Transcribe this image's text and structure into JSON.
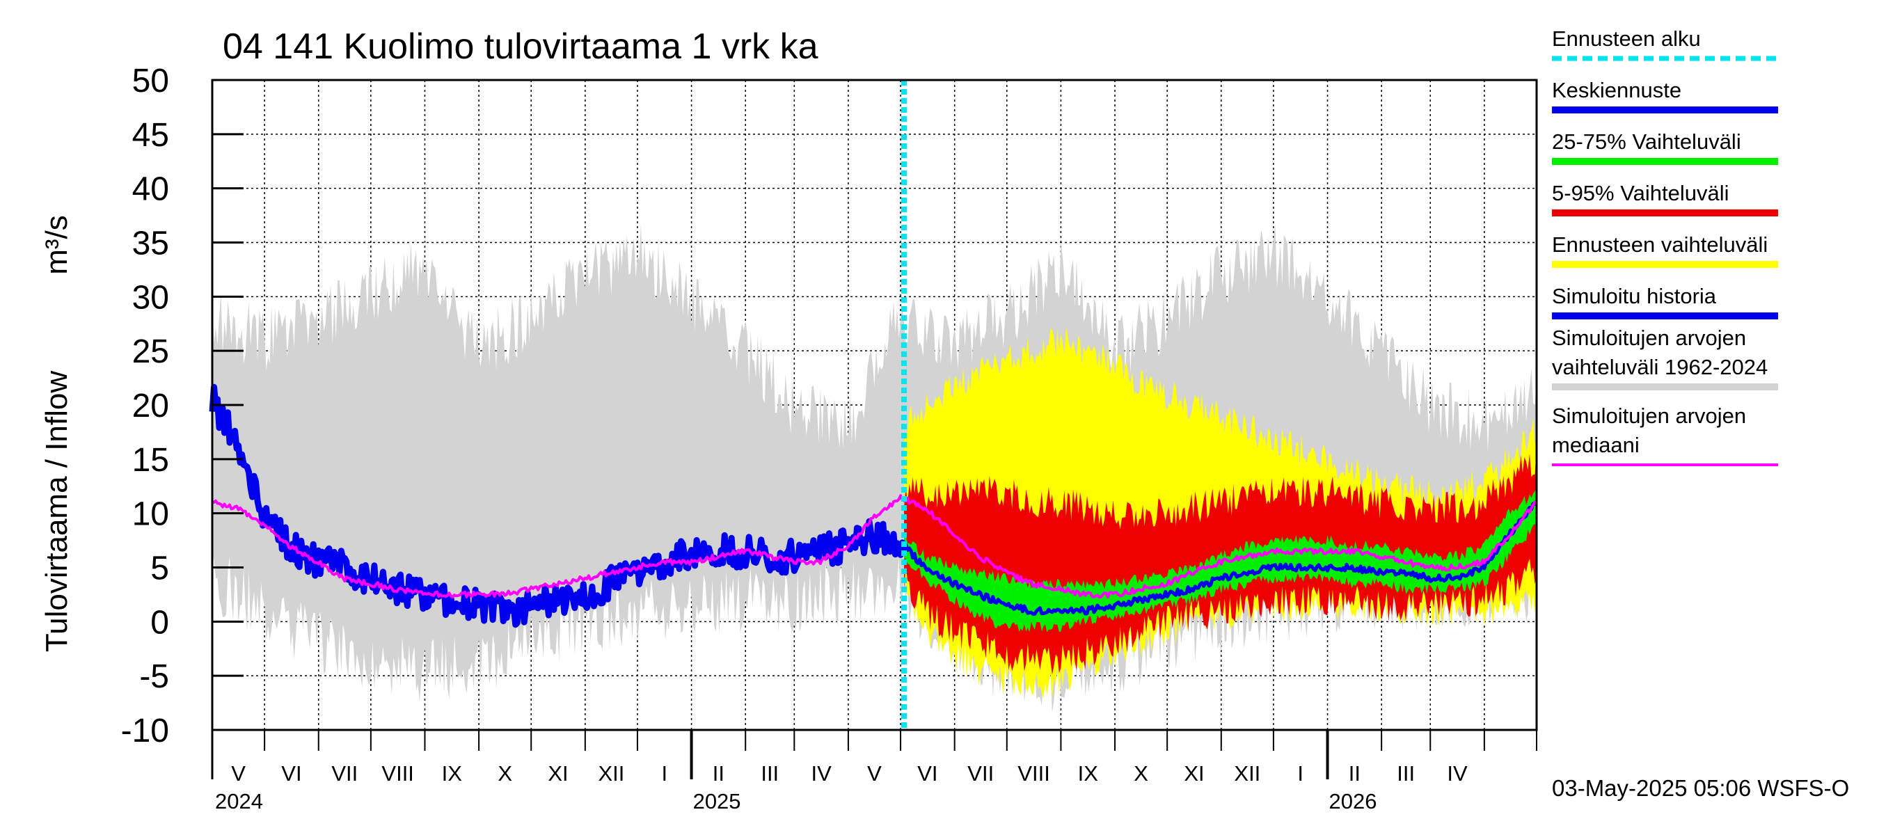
{
  "chart_data": {
    "type": "area",
    "title": "04 141 Kuolimo tulovirtaama 1 vrk ka",
    "ylabel": "Tulovirtaama / Inflow",
    "yunit": "m³/s",
    "ylim": [
      -10,
      50
    ],
    "yticks": [
      50,
      45,
      40,
      35,
      30,
      25,
      20,
      15,
      10,
      5,
      0,
      -5,
      -10
    ],
    "xlim": [
      "2024-04-01",
      "2026-05-01"
    ],
    "grid": true,
    "legend_position": "right",
    "forecast_start": "2025-05-03",
    "months": [
      "V",
      "VI",
      "VII",
      "VIII",
      "IX",
      "X",
      "XI",
      "XII",
      "I",
      "II",
      "III",
      "IV",
      "V",
      "VI",
      "VII",
      "VIII",
      "IX",
      "X",
      "XI",
      "XII",
      "I",
      "II",
      "III",
      "IV"
    ],
    "years": [
      "2024",
      "2025",
      "2026"
    ],
    "footer": "03-May-2025 05:06 WSFS-O",
    "legend": [
      {
        "label": "Ennusteen alku",
        "color": "#00e5ee",
        "style": "dashed"
      },
      {
        "label": "Keskiennuste",
        "color": "#0000ee",
        "style": "solid"
      },
      {
        "label": "25-75% Vaihteluväli",
        "color": "#00ee00",
        "style": "solid"
      },
      {
        "label": "5-95% Vaihteluväli",
        "color": "#ee0000",
        "style": "solid"
      },
      {
        "label": "Ennusteen vaihteluväli",
        "color": "#ffff00",
        "style": "solid"
      },
      {
        "label": "Simuloitu historia",
        "color": "#0000ee",
        "style": "solid"
      },
      {
        "label": "Simuloitujen arvojen vaihteluväli 1962-2024",
        "lines": [
          "Simuloitujen arvojen",
          "vaihteluväli 1962-2024"
        ],
        "color": "#d3d3d3",
        "style": "solid"
      },
      {
        "label": "Simuloitujen arvojen mediaani",
        "lines": [
          "Simuloitujen arvojen",
          "mediaani"
        ],
        "color": "#ff00ff",
        "style": "solid"
      }
    ],
    "series": [
      {
        "name": "Simuloitu historia",
        "x": [
          "2024-04-01",
          "2024-04-10",
          "2024-04-20",
          "2024-05-01",
          "2024-05-15",
          "2024-06-01",
          "2024-06-15",
          "2024-07-01",
          "2024-07-15",
          "2024-08-01",
          "2024-08-15",
          "2024-09-01",
          "2024-09-15",
          "2024-10-01",
          "2024-10-15",
          "2024-11-01",
          "2024-11-15",
          "2024-12-01",
          "2024-12-15",
          "2025-01-01",
          "2025-01-15",
          "2025-02-01",
          "2025-02-15",
          "2025-03-01",
          "2025-03-15",
          "2025-04-01",
          "2025-04-15",
          "2025-05-03"
        ],
        "values": [
          20.5,
          18,
          14,
          10,
          7,
          5.5,
          5,
          4,
          3,
          2.5,
          2,
          1.5,
          1,
          1.5,
          2,
          2.5,
          3.5,
          4.5,
          5.5,
          6.5,
          6.5,
          6.5,
          6,
          6,
          6.5,
          7,
          8,
          7
        ]
      },
      {
        "name": "Simuloitujen arvojen mediaani",
        "x": [
          "2024-04-01",
          "2024-04-15",
          "2024-05-01",
          "2024-05-15",
          "2024-06-01",
          "2024-06-15",
          "2024-07-01",
          "2024-07-15",
          "2024-08-01",
          "2024-08-15",
          "2024-09-01",
          "2024-09-15",
          "2024-10-01",
          "2024-10-15",
          "2024-11-01",
          "2024-11-15",
          "2024-12-01",
          "2024-12-15",
          "2025-01-01",
          "2025-01-15",
          "2025-02-01",
          "2025-02-15",
          "2025-03-01",
          "2025-03-15",
          "2025-04-01",
          "2025-04-15",
          "2025-05-01",
          "2025-05-15",
          "2025-06-01",
          "2025-06-15",
          "2025-07-01",
          "2025-07-15",
          "2025-08-01",
          "2025-08-15",
          "2025-09-01",
          "2025-09-15",
          "2025-10-01",
          "2025-10-15",
          "2025-11-01",
          "2025-11-15",
          "2025-12-01",
          "2025-12-15",
          "2026-01-01",
          "2026-01-15",
          "2026-02-01",
          "2026-02-15",
          "2026-03-01",
          "2026-03-15",
          "2026-04-01",
          "2026-04-15",
          "2026-05-01"
        ],
        "values": [
          11,
          10.5,
          9,
          7,
          5.5,
          4,
          3.5,
          3,
          2.5,
          2.5,
          2.5,
          2.5,
          3,
          3.5,
          4,
          4.5,
          5,
          5.5,
          5.5,
          6,
          6.5,
          6,
          5.5,
          5.5,
          7,
          9.5,
          11.5,
          10.5,
          8,
          6,
          4.5,
          3.5,
          3,
          2.5,
          2.5,
          3,
          3.5,
          4.5,
          5.5,
          6,
          6.5,
          6.5,
          6.5,
          6.5,
          6,
          5.5,
          5,
          5,
          5.5,
          8,
          11
        ]
      },
      {
        "name": "Keskiennuste",
        "x": [
          "2025-05-03",
          "2025-05-15",
          "2025-06-01",
          "2025-06-15",
          "2025-07-01",
          "2025-07-15",
          "2025-08-01",
          "2025-08-15",
          "2025-09-01",
          "2025-09-15",
          "2025-10-01",
          "2025-10-15",
          "2025-11-01",
          "2025-11-15",
          "2025-12-01",
          "2025-12-15",
          "2026-01-01",
          "2026-01-15",
          "2026-02-01",
          "2026-02-15",
          "2026-03-01",
          "2026-03-15",
          "2026-04-01",
          "2026-04-15",
          "2026-05-01"
        ],
        "values": [
          7,
          5,
          3.5,
          2.5,
          1.5,
          1,
          1,
          1,
          1.5,
          2,
          2.5,
          3,
          4,
          4.5,
          5,
          5,
          5,
          5,
          4.5,
          4.5,
          4,
          4,
          5,
          8,
          11
        ]
      },
      {
        "name": "Simuloitujen arvojen vaihteluväli 1962-2024",
        "x": [
          "2024-04-01",
          "2024-05-01",
          "2024-06-01",
          "2024-07-01",
          "2024-08-01",
          "2024-09-01",
          "2024-10-01",
          "2024-11-01",
          "2024-12-01",
          "2025-01-01",
          "2025-02-01",
          "2025-03-01",
          "2025-04-01",
          "2025-05-01",
          "2025-06-01",
          "2025-07-01",
          "2025-08-01",
          "2025-09-01",
          "2025-10-01",
          "2025-11-01",
          "2025-12-01",
          "2026-01-01",
          "2026-02-01",
          "2026-03-01",
          "2026-04-01",
          "2026-05-01"
        ],
        "low": [
          4,
          1,
          -2,
          -3.5,
          -4.5,
          -4,
          -2,
          0,
          1,
          1.5,
          2,
          2,
          2.5,
          3,
          -2,
          -5,
          -5.5,
          -4,
          -2,
          0,
          1,
          1.5,
          2,
          2,
          2.5,
          3
        ],
        "high": [
          28,
          26,
          28,
          30,
          33,
          25,
          28,
          32,
          34,
          30,
          25,
          20,
          18,
          28,
          26,
          28,
          33,
          25,
          28,
          32,
          34,
          30,
          25,
          20,
          18,
          22
        ]
      },
      {
        "name": "Ennusteen vaihteluväli",
        "x": [
          "2025-05-03",
          "2025-05-15",
          "2025-06-01",
          "2025-06-15",
          "2025-07-01",
          "2025-07-15",
          "2025-08-01",
          "2025-08-15",
          "2025-09-01",
          "2025-09-15",
          "2025-10-01",
          "2025-10-15",
          "2025-11-01",
          "2025-11-15",
          "2025-12-01",
          "2025-12-15",
          "2026-01-01",
          "2026-01-15",
          "2026-02-01",
          "2026-02-15",
          "2026-03-01",
          "2026-03-15",
          "2026-04-01",
          "2026-04-15",
          "2026-05-01"
        ],
        "low": [
          3,
          -1,
          -3,
          -4.5,
          -5.5,
          -6,
          -5.5,
          -4.5,
          -3,
          -2,
          -1,
          0,
          0.5,
          1,
          1.5,
          1.5,
          1.5,
          1.5,
          1.5,
          1,
          1,
          1,
          1,
          1.5,
          2
        ],
        "high": [
          18,
          20,
          22,
          23,
          24,
          25,
          26,
          25,
          24,
          22,
          21,
          20,
          19,
          18,
          17,
          16,
          15,
          14,
          13,
          12,
          12,
          12,
          13,
          15,
          18
        ]
      },
      {
        "name": "5-95% Vaihteluväli",
        "x": [
          "2025-05-03",
          "2025-05-15",
          "2025-06-01",
          "2025-06-15",
          "2025-07-01",
          "2025-07-15",
          "2025-08-01",
          "2025-08-15",
          "2025-09-01",
          "2025-09-15",
          "2025-10-01",
          "2025-10-15",
          "2025-11-01",
          "2025-11-15",
          "2025-12-01",
          "2025-12-15",
          "2026-01-01",
          "2026-01-15",
          "2026-02-01",
          "2026-02-15",
          "2026-03-01",
          "2026-03-15",
          "2026-04-01",
          "2026-04-15",
          "2026-05-01"
        ],
        "low": [
          4,
          1,
          -1,
          -2,
          -3,
          -3.5,
          -3.5,
          -3,
          -2,
          -1,
          0,
          0.5,
          1,
          1.5,
          2,
          2,
          2,
          2,
          1.5,
          1.5,
          1.5,
          1.5,
          2,
          3,
          5
        ],
        "high": [
          12,
          12,
          12,
          12,
          12,
          11,
          11,
          10.5,
          10,
          10,
          10,
          10.5,
          11,
          11.5,
          12,
          12,
          12,
          11.5,
          11,
          10.5,
          10.5,
          10.5,
          11,
          13,
          15
        ]
      },
      {
        "name": "25-75% Vaihteluväli",
        "x": [
          "2025-05-03",
          "2025-05-15",
          "2025-06-01",
          "2025-06-15",
          "2025-07-01",
          "2025-07-15",
          "2025-08-01",
          "2025-08-15",
          "2025-09-01",
          "2025-09-15",
          "2025-10-01",
          "2025-10-15",
          "2025-11-01",
          "2025-11-15",
          "2025-12-01",
          "2025-12-15",
          "2026-01-01",
          "2026-01-15",
          "2026-02-01",
          "2026-02-15",
          "2026-03-01",
          "2026-03-15",
          "2026-04-01",
          "2026-04-15",
          "2026-05-01"
        ],
        "low": [
          6,
          4,
          2,
          0.5,
          -0.5,
          -0.5,
          -0.5,
          0,
          0.5,
          1,
          1.5,
          2,
          3,
          3.5,
          4,
          4,
          4,
          3.5,
          3.5,
          3,
          3,
          3,
          3.5,
          6,
          9
        ],
        "high": [
          8,
          6,
          5,
          4.5,
          4,
          3.5,
          3.5,
          3.5,
          3.5,
          4,
          4.5,
          5,
          6,
          7,
          7.5,
          7.5,
          7.5,
          7,
          7,
          6.5,
          6,
          6,
          7,
          10,
          12
        ]
      }
    ]
  }
}
